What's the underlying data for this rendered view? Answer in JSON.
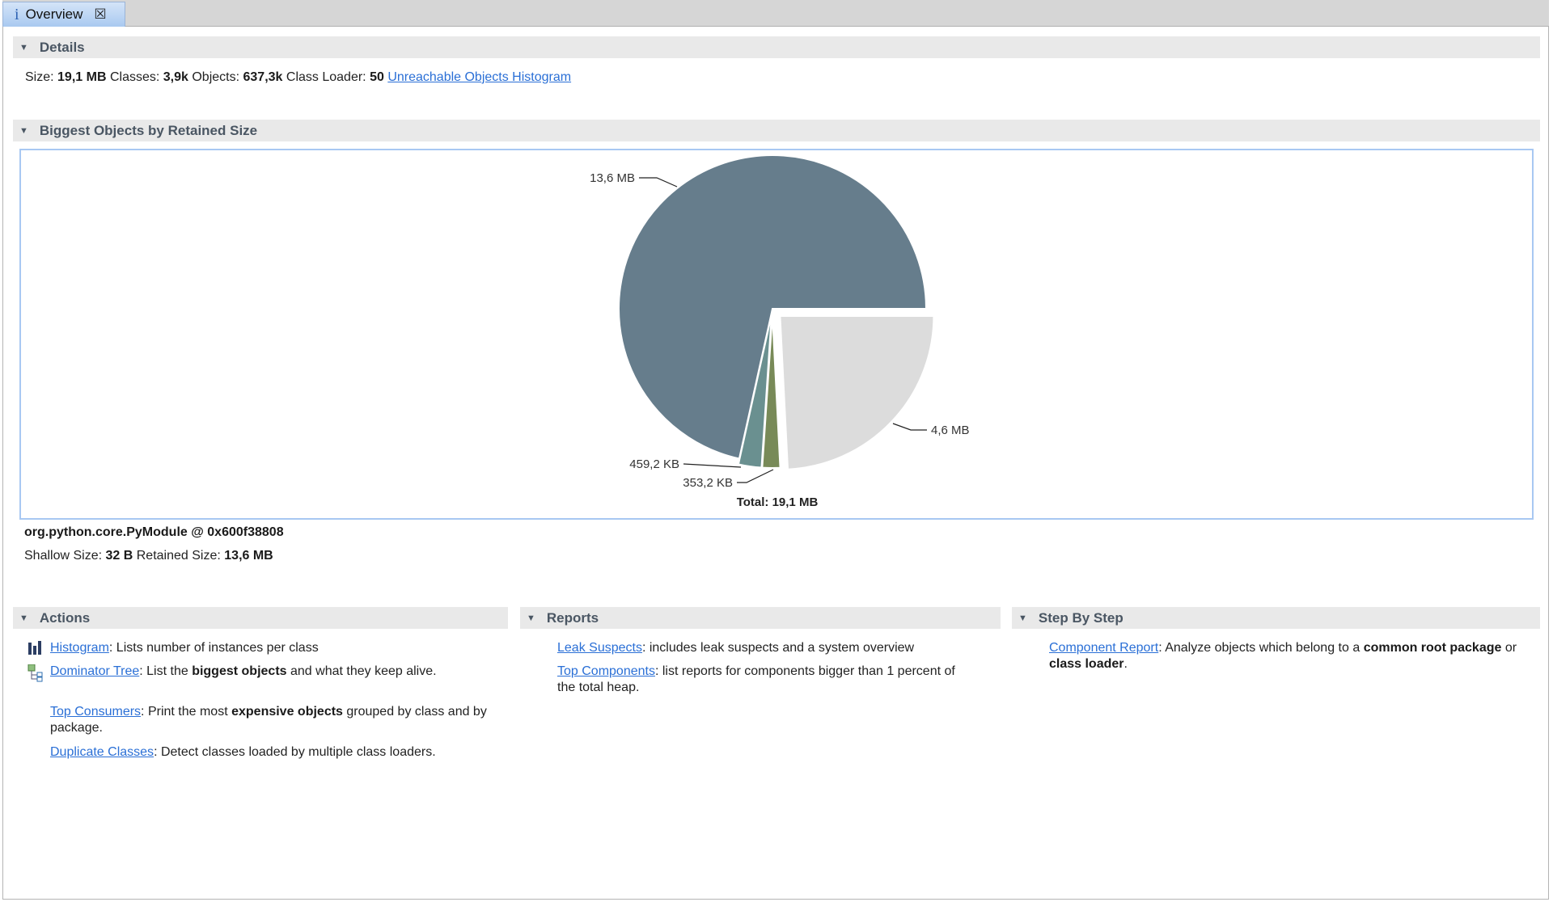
{
  "tab": {
    "icon": "info-icon",
    "label": "Overview",
    "close_icon": "close-icon"
  },
  "details": {
    "title": "Details",
    "size_label": "Size:",
    "size": "19,1 MB",
    "classes_label": "Classes:",
    "classes": "3,9k",
    "objects_label": "Objects:",
    "objects": "637,3k",
    "loader_label": "Class Loader:",
    "loader": "50",
    "link": "Unreachable Objects Histogram"
  },
  "biggest": {
    "title": "Biggest Objects by Retained Size"
  },
  "chart_data": {
    "type": "pie",
    "unit": "MB",
    "slices": [
      {
        "label": "13,6 MB",
        "value": 13.6,
        "color": "#667d8c"
      },
      {
        "label": "4,6 MB",
        "value": 4.6,
        "color": "#dcdcdc",
        "selected": true
      },
      {
        "label": "353,2 KB",
        "value": 0.3532,
        "color": "#788a58"
      },
      {
        "label": "459,2 KB",
        "value": 0.4592,
        "color": "#6a9090"
      }
    ],
    "total_label": "Total: 19,1 MB"
  },
  "selection": {
    "name": "org.python.core.PyModule @ 0x600f38808",
    "shallow_label": "Shallow Size:",
    "shallow": "32 B",
    "retained_label": "Retained Size:",
    "retained": "13,6 MB"
  },
  "actions": {
    "title": "Actions",
    "items": [
      {
        "link": "Histogram",
        "pre": ": Lists number of instances per class",
        "bold": "",
        "post": "",
        "icon": "histogram-icon"
      },
      {
        "link": "Dominator Tree",
        "pre": ": List the ",
        "bold": "biggest objects",
        "post": " and what they keep alive.",
        "icon": "dominator-tree-icon"
      },
      {
        "link": "Top Consumers",
        "pre": ": Print the most ",
        "bold": "expensive objects",
        "post": " grouped by class and by package."
      },
      {
        "link": "Duplicate Classes",
        "pre": ": Detect classes loaded by multiple class loaders.",
        "bold": "",
        "post": ""
      }
    ]
  },
  "reports": {
    "title": "Reports",
    "items": [
      {
        "link": "Leak Suspects",
        "pre": ": includes leak suspects and a system overview"
      },
      {
        "link": "Top Components",
        "pre": ": list reports for components bigger than 1 percent of the total heap."
      }
    ]
  },
  "step": {
    "title": "Step By Step",
    "item": {
      "link": "Component Report",
      "pre": ": Analyze objects which belong to a ",
      "bold1": "common root package",
      "mid": " or ",
      "bold2": "class loader",
      "post": "."
    }
  }
}
